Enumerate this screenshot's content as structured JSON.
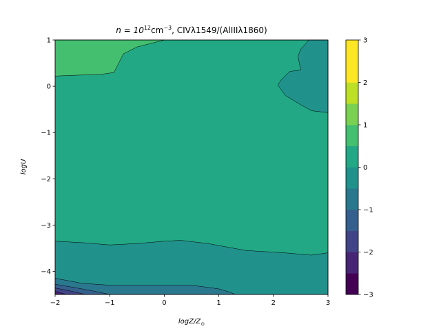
{
  "chart_data": {
    "type": "contourf",
    "title": {
      "pre": "n = 10",
      "sup1": "12",
      "mid": "cm",
      "sup2": "−3",
      "post": ", CIVλ1549/(AlIIIλ1860)"
    },
    "xlabel": {
      "main": "logZ/Z",
      "sub": "⊙"
    },
    "ylabel": "logU",
    "xlim": [
      -2,
      3
    ],
    "ylim": [
      -4.5,
      1
    ],
    "xticks": [
      -2,
      -1,
      0,
      1,
      2,
      3
    ],
    "xtick_labels": [
      "−2",
      "−1",
      "0",
      "1",
      "2",
      "3"
    ],
    "yticks": [
      1,
      0,
      -1,
      -2,
      -3,
      -4
    ],
    "ytick_labels": [
      "1",
      "0",
      "−1",
      "−2",
      "−3",
      "−4"
    ],
    "colorbar": {
      "levels": [
        -3,
        -2.5,
        -2,
        -1.5,
        -1,
        -0.5,
        0,
        0.5,
        1,
        1.5,
        2,
        2.5,
        3
      ],
      "colors": [
        "#440154",
        "#482475",
        "#414487",
        "#355f8d",
        "#2a788e",
        "#21918c",
        "#22a884",
        "#44bf70",
        "#7ad151",
        "#bddf26",
        "#fde725",
        "#fde725"
      ],
      "ticks": [
        3,
        2,
        1,
        0,
        -1,
        -2,
        -3
      ],
      "tick_labels": [
        "3",
        "2",
        "1",
        "0",
        "−1",
        "−2",
        "−3"
      ]
    },
    "regions": [
      {
        "name": "level 0.5 to 1 (background)",
        "level": [
          0.5,
          1
        ],
        "color": "#22a884",
        "points": [
          [
            -2,
            -4.5
          ],
          [
            3,
            -4.5
          ],
          [
            3,
            1
          ],
          [
            -2,
            1
          ]
        ]
      },
      {
        "name": "level 0 to 0.5 (bottom band)",
        "level": [
          0,
          0.5
        ],
        "color": "#21918c",
        "points": [
          [
            -2,
            -4.5
          ],
          [
            -2,
            -3.35
          ],
          [
            -1.5,
            -3.38
          ],
          [
            -1,
            -3.43
          ],
          [
            -0.5,
            -3.4
          ],
          [
            0,
            -3.35
          ],
          [
            0.3,
            -3.33
          ],
          [
            0.8,
            -3.4
          ],
          [
            1.5,
            -3.55
          ],
          [
            2.2,
            -3.6
          ],
          [
            2.7,
            -3.65
          ],
          [
            3,
            -3.6
          ],
          [
            3,
            -4.5
          ]
        ]
      },
      {
        "name": "level 0 to 0.5 (upper right)",
        "level": [
          0,
          0.5
        ],
        "color": "#21918c",
        "points": [
          [
            2.65,
            1
          ],
          [
            2.5,
            0.8
          ],
          [
            2.45,
            0.65
          ],
          [
            2.5,
            0.35
          ],
          [
            2.3,
            0.32
          ],
          [
            2.15,
            0.15
          ],
          [
            2.08,
            0.03
          ],
          [
            2.22,
            -0.2
          ],
          [
            2.5,
            -0.4
          ],
          [
            2.7,
            -0.53
          ],
          [
            3,
            -0.57
          ],
          [
            3,
            1
          ]
        ]
      },
      {
        "name": "level 1 to 1.5 (upper left)",
        "level": [
          1,
          1.5
        ],
        "color": "#44bf70",
        "points": [
          [
            -2,
            1
          ],
          [
            0,
            1
          ],
          [
            -0.5,
            0.85
          ],
          [
            -0.75,
            0.7
          ],
          [
            -0.92,
            0.3
          ],
          [
            -1.2,
            0.25
          ],
          [
            -1.6,
            0.24
          ],
          [
            -2,
            0.22
          ]
        ]
      },
      {
        "name": "level -0.5 to 0 (bottom left)",
        "level": [
          -0.5,
          0
        ],
        "color": "#2a788e",
        "points": [
          [
            -2,
            -4.5
          ],
          [
            -2,
            -4.15
          ],
          [
            -1.5,
            -4.26
          ],
          [
            -1,
            -4.3
          ],
          [
            0,
            -4.3
          ],
          [
            0.5,
            -4.3
          ],
          [
            1,
            -4.38
          ],
          [
            1.2,
            -4.45
          ],
          [
            1.3,
            -4.5
          ]
        ]
      },
      {
        "name": "level -1 to -0.5",
        "level": [
          -1,
          -0.5
        ],
        "color": "#355f8d",
        "points": [
          [
            -2,
            -4.5
          ],
          [
            -2,
            -4.28
          ],
          [
            -1.6,
            -4.36
          ],
          [
            -1.2,
            -4.45
          ],
          [
            -1,
            -4.5
          ]
        ]
      },
      {
        "name": "level -1.5 to -1",
        "level": [
          -1.5,
          -1
        ],
        "color": "#414487",
        "points": [
          [
            -2,
            -4.5
          ],
          [
            -2,
            -4.36
          ],
          [
            -1.7,
            -4.43
          ],
          [
            -1.45,
            -4.5
          ]
        ]
      },
      {
        "name": "level -2 to -1.5",
        "level": [
          -2,
          -1.5
        ],
        "color": "#482475",
        "points": [
          [
            -2,
            -4.5
          ],
          [
            -2,
            -4.43
          ],
          [
            -1.8,
            -4.5
          ]
        ]
      }
    ]
  }
}
